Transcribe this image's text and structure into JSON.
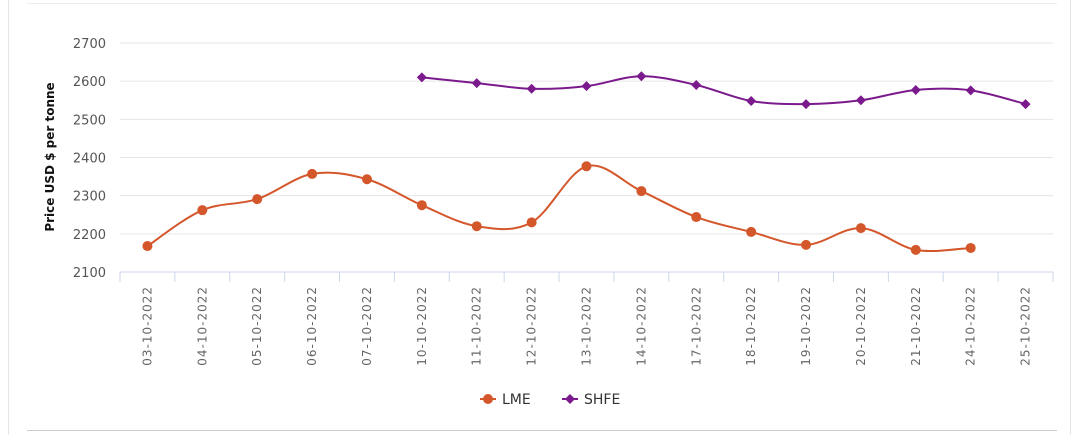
{
  "chart_data": {
    "type": "line",
    "title": "",
    "xlabel": "",
    "ylabel": "Price USD $ per tonne",
    "ylim": [
      2100,
      2700
    ],
    "yticks": [
      2100,
      2200,
      2300,
      2400,
      2500,
      2600,
      2700
    ],
    "grid": true,
    "legend_placement": "bottom-center",
    "categories": [
      "03-10-2022",
      "04-10-2022",
      "05-10-2022",
      "06-10-2022",
      "07-10-2022",
      "10-10-2022",
      "11-10-2022",
      "12-10-2022",
      "13-10-2022",
      "14-10-2022",
      "17-10-2022",
      "18-10-2022",
      "19-10-2022",
      "20-10-2022",
      "21-10-2022",
      "24-10-2022",
      "25-10-2022"
    ],
    "series": [
      {
        "name": "LME",
        "color": "#d4562b",
        "marker": "circle",
        "values": [
          2168,
          2262,
          2291,
          2357,
          2343,
          2275,
          2220,
          2230,
          2377,
          2312,
          2244,
          2205,
          2171,
          2215,
          2158,
          2163,
          null
        ]
      },
      {
        "name": "SHFE",
        "color": "#7b1a8c",
        "marker": "diamond",
        "values": [
          null,
          null,
          null,
          null,
          null,
          2610,
          2595,
          2580,
          2587,
          2613,
          2590,
          2548,
          2540,
          2550,
          2577,
          2576,
          2540
        ]
      }
    ]
  }
}
